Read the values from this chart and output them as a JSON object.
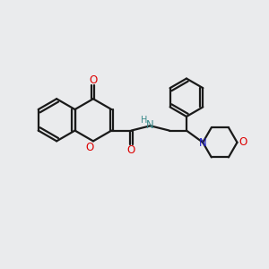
{
  "background_color": "#eaebed",
  "bond_color": "#1a1a1a",
  "oxygen_color": "#dd0000",
  "nitrogen_color": "#2222cc",
  "nh_color": "#3a8a8a",
  "figsize": [
    3.0,
    3.0
  ],
  "dpi": 100,
  "xlim": [
    0,
    10
  ],
  "ylim": [
    0,
    10
  ]
}
